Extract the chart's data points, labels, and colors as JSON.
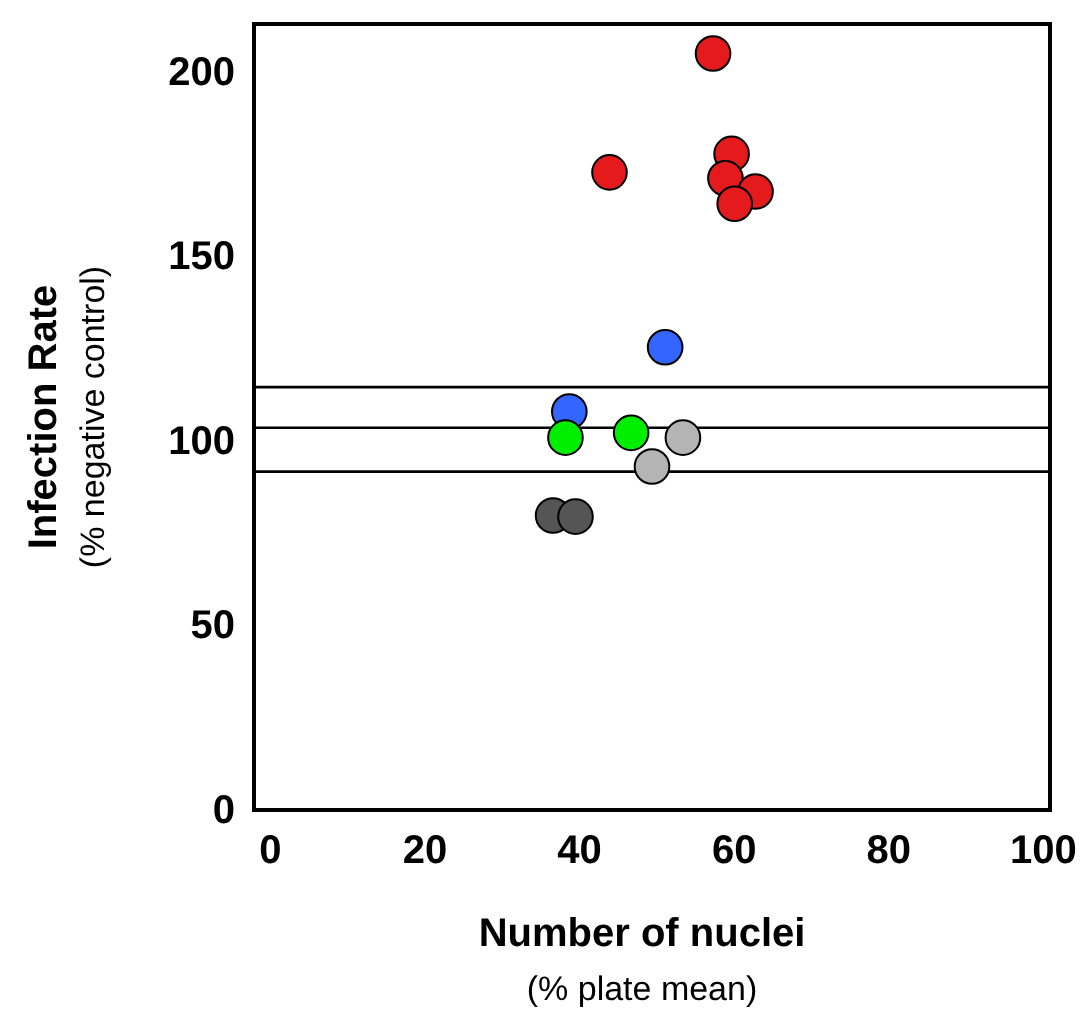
{
  "chart_data": {
    "type": "scatter",
    "xlabel": "Number of nuclei\n(% plate mean)",
    "ylabel": "Infection Rate\n(% negative control)",
    "xlim": [
      -2,
      101
    ],
    "xticks": [
      0,
      20,
      40,
      60,
      80,
      100
    ],
    "ylim": [
      0,
      213
    ],
    "yticks": [
      0,
      50,
      100,
      150,
      200
    ],
    "grid": false,
    "marker": "circle",
    "series": [
      {
        "color": "#e41a1c",
        "x": [
          57.4,
          44.0,
          59.8,
          59.0,
          62.9,
          60.2
        ],
        "values": [
          205,
          172.8,
          177.8,
          171.2,
          167.6,
          164.3
        ]
      },
      {
        "color": "#3366ff",
        "x": [
          51.2,
          38.8
        ],
        "values": [
          125.4,
          108
        ]
      },
      {
        "color": "#00ee00",
        "x": [
          38.3,
          46.8
        ],
        "values": [
          100.9,
          102.2
        ]
      },
      {
        "color": "#b4b4b4",
        "x": [
          53.5,
          49.5
        ],
        "values": [
          100.9,
          93.1
        ]
      },
      {
        "color": "#555555",
        "x": [
          36.7,
          39.6
        ],
        "values": [
          79.8,
          79.5
        ]
      }
    ],
    "ref_lines": [
      {
        "axis": "y",
        "value": 103.6,
        "color": "#000000"
      },
      {
        "axis": "y",
        "value": 114.6,
        "color": "#000000"
      },
      {
        "axis": "y",
        "value": 91.7,
        "color": "#000000"
      }
    ]
  }
}
